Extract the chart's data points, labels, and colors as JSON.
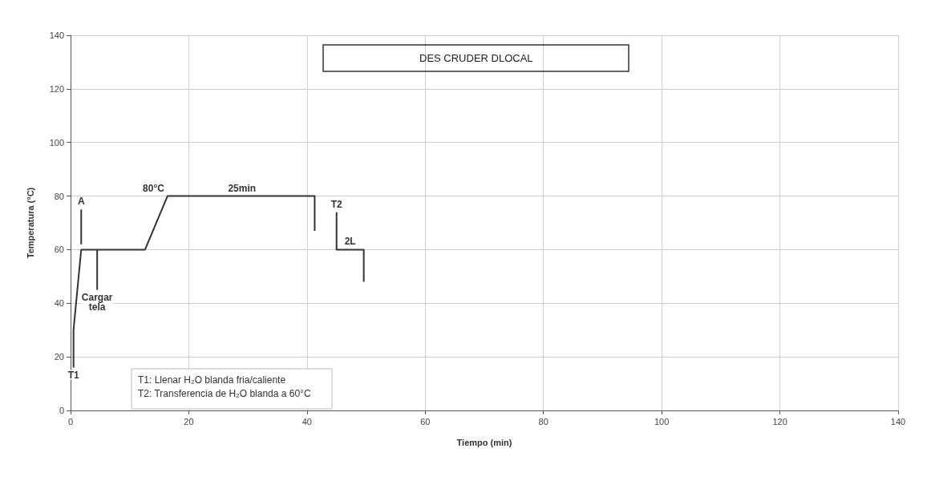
{
  "chart_data": {
    "type": "line",
    "title": "DES CRUDER DLOCAL",
    "xlabel": "Tiempo (min)",
    "ylabel": "Temperatura (°C)",
    "xlim": [
      0,
      140
    ],
    "xticks": [
      0,
      20,
      40,
      60,
      80,
      100,
      120,
      140
    ],
    "ylim": [
      0,
      140
    ],
    "yticks": [
      0,
      20,
      40,
      60,
      80,
      100,
      120,
      140
    ],
    "grid": true,
    "series": [
      {
        "color": "#333333",
        "x": [
          0.5,
          0.5,
          1.8,
          12.6,
          16.4,
          41.3,
          41.3
        ],
        "values": [
          16,
          30,
          60,
          60,
          80,
          80,
          67
        ]
      },
      {
        "color": "#333333",
        "x": [
          45,
          45,
          49.6,
          49.6
        ],
        "values": [
          74,
          60,
          60,
          48
        ]
      },
      {
        "color": "#333333",
        "x": [
          1.8,
          1.8
        ],
        "values": [
          75,
          62
        ]
      },
      {
        "color": "#333333",
        "x": [
          4.5,
          4.5
        ],
        "values": [
          45,
          60
        ]
      }
    ],
    "annotations": [
      {
        "text": "A",
        "x": 1.8,
        "y": 75
      },
      {
        "text": "80°C",
        "x": 16.4,
        "y": 80
      },
      {
        "text": "25min",
        "x": 29,
        "y": 80
      },
      {
        "text": "T2",
        "x": 45,
        "y": 74
      },
      {
        "text": "2L",
        "x": 47.3,
        "y": 60
      },
      {
        "text": "Cargar\ntela",
        "x": 4.5,
        "y": 45
      },
      {
        "text": "T1",
        "x": 0.5,
        "y": 16
      },
      "T1: Llenar H₂O blanda fria/caliente",
      "T2: Transferencia de H₂O blanda a 60°C"
    ]
  }
}
